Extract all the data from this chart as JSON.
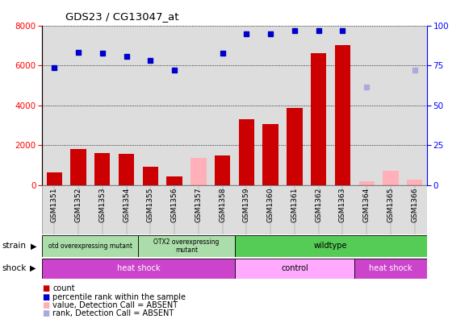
{
  "title": "GDS23 / CG13047_at",
  "samples": [
    "GSM1351",
    "GSM1352",
    "GSM1353",
    "GSM1354",
    "GSM1355",
    "GSM1356",
    "GSM1357",
    "GSM1358",
    "GSM1359",
    "GSM1360",
    "GSM1361",
    "GSM1362",
    "GSM1363",
    "GSM1364",
    "GSM1365",
    "GSM1366"
  ],
  "counts": [
    650,
    1800,
    1600,
    1550,
    900,
    420,
    null,
    1500,
    3300,
    3050,
    3850,
    6600,
    7000,
    null,
    null,
    null
  ],
  "counts_absent": [
    null,
    null,
    null,
    null,
    null,
    null,
    1350,
    null,
    null,
    null,
    null,
    null,
    null,
    200,
    700,
    250
  ],
  "ranks_present": [
    5900,
    6650,
    6600,
    6450,
    6250,
    5750,
    null,
    6600,
    7600,
    7600,
    7750,
    7750,
    7750,
    null,
    null,
    null
  ],
  "ranks_absent": [
    null,
    null,
    null,
    null,
    null,
    null,
    null,
    null,
    null,
    null,
    null,
    null,
    null,
    4900,
    null,
    5750
  ],
  "ylim_left": [
    0,
    8000
  ],
  "ylim_right": [
    0,
    100
  ],
  "yticks_left": [
    0,
    2000,
    4000,
    6000,
    8000
  ],
  "yticks_right": [
    0,
    25,
    50,
    75,
    100
  ],
  "bar_color": "#CC0000",
  "bar_absent_color": "#FFB0B8",
  "rank_color": "#0000CC",
  "rank_absent_color": "#AAAADD",
  "plot_bg": "#DDDDDD",
  "strain_otd_color": "#AADDAA",
  "strain_otx2_color": "#AADDAA",
  "strain_wild_color": "#55CC55",
  "shock_heat_color": "#CC44CC",
  "shock_ctrl_color": "#FFAAFF",
  "shock_heat2_color": "#CC44CC"
}
